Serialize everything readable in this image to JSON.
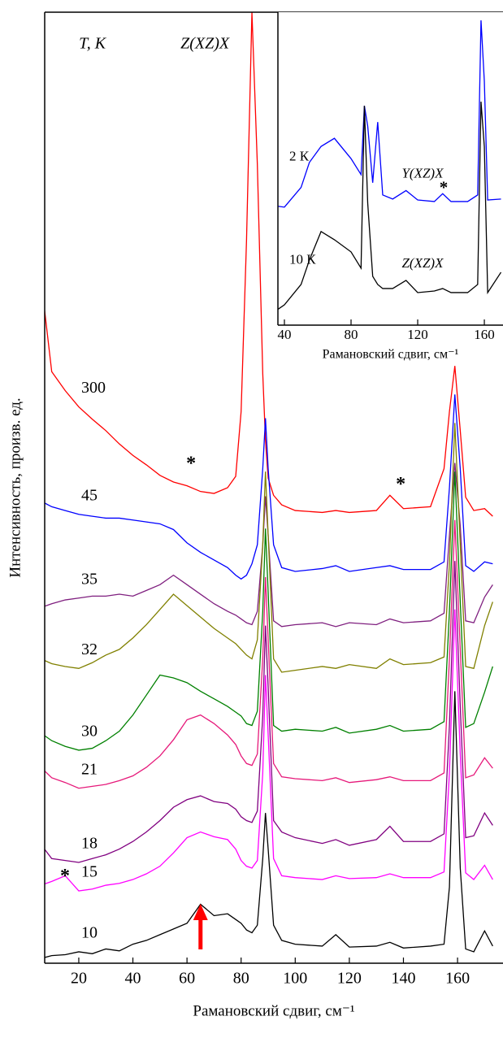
{
  "chart_data": [
    {
      "type": "line",
      "xlabel": "Рамановский сдвиг, см⁻¹",
      "ylabel": "Интенсивность, произв. ед.",
      "xlim": [
        7.4,
        176.8
      ],
      "xticks": [
        20,
        40,
        60,
        80,
        100,
        120,
        140,
        160
      ],
      "ylim": [
        0,
        100
      ],
      "x": [
        6,
        10,
        15,
        20,
        25,
        30,
        35,
        40,
        45,
        50,
        55,
        60,
        65,
        70,
        75,
        78,
        80,
        82,
        84,
        86,
        88,
        89,
        90,
        92,
        95,
        100,
        110,
        115,
        120,
        130,
        135,
        140,
        150,
        155,
        157,
        159,
        161,
        163,
        166,
        170,
        173
      ],
      "series": [
        {
          "name": "300",
          "color": "#ff0000",
          "values": [
            72,
            62.2,
            60.2,
            58.5,
            57.2,
            56.0,
            54.6,
            53.4,
            52.4,
            51.3,
            50.6,
            50.2,
            49.6,
            49.4,
            50.0,
            51.2,
            58,
            76,
            100,
            84,
            62,
            55,
            51,
            49.2,
            48.2,
            47.6,
            47.4,
            47.6,
            47.4,
            47.6,
            49.2,
            47.8,
            48.0,
            52,
            58,
            62.8,
            56,
            49,
            47.6,
            47.8,
            47.0
          ]
        },
        {
          "name": "45",
          "color": "#0000ff",
          "values": [
            48.6,
            48.0,
            47.6,
            47.2,
            47.0,
            46.8,
            46.8,
            46.6,
            46.4,
            46.2,
            45.6,
            44.2,
            43.2,
            42.4,
            41.6,
            40.8,
            40.4,
            40.8,
            42.0,
            44,
            52,
            57.3,
            52,
            44,
            41.6,
            41.2,
            41.5,
            41.8,
            41.2,
            41.6,
            41.8,
            41.4,
            41.4,
            42.2,
            50,
            59.8,
            52,
            41.8,
            41.2,
            42.2,
            42.0
          ]
        },
        {
          "name": "35",
          "color": "#7f1f7f",
          "values": [
            37.4,
            37.8,
            38.2,
            38.4,
            38.6,
            38.6,
            38.8,
            38.6,
            39.2,
            39.8,
            40.8,
            39.8,
            38.8,
            37.8,
            37.0,
            36.6,
            36.2,
            35.8,
            35.6,
            37,
            44,
            49.1,
            45,
            36,
            35.4,
            35.6,
            35.8,
            35.4,
            35.8,
            35.6,
            36.2,
            35.8,
            36.0,
            36.8,
            45,
            52.6,
            46,
            36.0,
            35.8,
            38.5,
            39.8
          ]
        },
        {
          "name": "32",
          "color": "#808000",
          "values": [
            32.0,
            31.5,
            31.2,
            31.0,
            31.6,
            32.4,
            33.0,
            34.2,
            35.6,
            37.2,
            38.8,
            37.6,
            36.4,
            35.2,
            34.2,
            33.6,
            33.0,
            32.4,
            32.0,
            34,
            44,
            51.7,
            45,
            32,
            30.6,
            30.8,
            31.2,
            31.0,
            31.4,
            31.0,
            32.0,
            31.4,
            31.6,
            32.2,
            42,
            56.8,
            44,
            31.2,
            31.0,
            35.5,
            38.0
          ]
        },
        {
          "name": "30",
          "color": "#008000",
          "values": [
            24.2,
            23.4,
            22.8,
            22.4,
            22.6,
            23.4,
            24.4,
            26.1,
            28.2,
            30.3,
            30.0,
            29.5,
            28.6,
            27.8,
            27.0,
            26.4,
            26.0,
            25.2,
            25.0,
            26.5,
            37,
            45.7,
            39,
            25,
            24.4,
            24.6,
            24.4,
            24.8,
            24.2,
            24.6,
            25.0,
            24.4,
            24.6,
            25.4,
            37,
            51.7,
            38,
            24.8,
            25.2,
            28.5,
            31.2
          ]
        },
        {
          "name": "21",
          "color": "#e6197a",
          "values": [
            20.6,
            19.5,
            19.0,
            18.4,
            18.6,
            18.8,
            19.2,
            19.7,
            20.6,
            21.8,
            23.5,
            25.6,
            26.1,
            25.2,
            24.0,
            23.0,
            21.8,
            21.0,
            20.8,
            22,
            32,
            40.6,
            34,
            21,
            19.6,
            19.4,
            19.2,
            19.5,
            19.0,
            19.3,
            19.6,
            19.2,
            19.2,
            20,
            32,
            46.6,
            33,
            19.5,
            19.8,
            21.6,
            20.5
          ]
        },
        {
          "name": "18",
          "color": "#800080",
          "values": [
            12.5,
            11.0,
            10.8,
            10.6,
            11.0,
            11.4,
            12.0,
            12.8,
            13.8,
            15.0,
            16.4,
            17.2,
            17.6,
            17.0,
            16.8,
            16.2,
            15.4,
            15.0,
            14.8,
            16.0,
            26,
            35.5,
            29,
            15,
            13.8,
            13.2,
            12.6,
            13.0,
            12.4,
            13.0,
            14.4,
            12.8,
            12.8,
            13.6,
            25,
            42.3,
            27,
            13.2,
            13.4,
            15.8,
            14.5
          ]
        },
        {
          "name": "15",
          "color": "#ff00ff",
          "values": [
            8.2,
            8.6,
            9.2,
            7.6,
            7.8,
            8.2,
            8.4,
            8.8,
            9.4,
            10.2,
            11.6,
            13.2,
            13.8,
            13.3,
            13.0,
            12.0,
            10.8,
            10.2,
            10.0,
            10.8,
            20,
            30.3,
            24,
            11,
            9.2,
            9.0,
            8.8,
            9.2,
            8.9,
            9.0,
            9.4,
            9.0,
            9.0,
            9.6,
            20,
            37.2,
            22,
            9.5,
            8.8,
            10.3,
            8.8
          ]
        },
        {
          "name": "10",
          "color": "#000000",
          "values": [
            0.5,
            0.8,
            0.9,
            1.2,
            1.0,
            1.5,
            1.3,
            2.0,
            2.4,
            3.0,
            3.6,
            4.2,
            6.2,
            5.0,
            5.2,
            4.6,
            4.2,
            3.5,
            3.2,
            4.0,
            11,
            15.8,
            12,
            4,
            2.4,
            2.0,
            1.8,
            3.0,
            1.7,
            1.8,
            2.2,
            1.6,
            1.8,
            2.0,
            8,
            28.6,
            10,
            1.5,
            1.2,
            3.4,
            1.8
          ]
        }
      ],
      "annotations": [
        {
          "text": "T, К",
          "x": 25,
          "y": 96.6
        },
        {
          "text": "Z(XZ)X",
          "x": 66.6,
          "y": 96.6
        },
        {
          "text": "*",
          "x": 61.5,
          "y": 52.4
        },
        {
          "text": "*",
          "x": 139,
          "y": 50.2
        },
        {
          "text": "*",
          "x": 14.9,
          "y": 9.0
        }
      ]
    },
    {
      "type": "line",
      "xlabel": "Рамановский сдвиг, см⁻¹",
      "xlim": [
        36.1,
        171.2
      ],
      "xticks": [
        40,
        80,
        120,
        160
      ],
      "ylim": [
        0,
        100
      ],
      "x": [
        36,
        40,
        50,
        55,
        62,
        70,
        80,
        86,
        88,
        90,
        93,
        96,
        99,
        105,
        113,
        120,
        130,
        135,
        140,
        150,
        156,
        158,
        160,
        162,
        170
      ],
      "series": [
        {
          "name": "2 К",
          "color": "#0000ff",
          "values": [
            38,
            37.7,
            44,
            52,
            57.1,
            59.7,
            53.2,
            48.1,
            70.1,
            63.6,
            45.5,
            64.9,
            41.6,
            40.3,
            43,
            40,
            39.5,
            42,
            39.5,
            39.5,
            41.6,
            97.4,
            77.9,
            40,
            40.3
          ]
        },
        {
          "name": "10 К",
          "color": "#000000",
          "values": [
            5,
            6.5,
            13,
            20.8,
            29.9,
            27.3,
            23.4,
            18.2,
            70.1,
            39,
            15.6,
            13,
            11.7,
            11.7,
            14.3,
            10.4,
            10.9,
            11.7,
            10.4,
            10.4,
            13,
            71.4,
            57,
            10.4,
            16.9
          ]
        }
      ],
      "annotations": [
        {
          "text": "Y(XZ)X",
          "x": 122.9,
          "y": 48.1
        },
        {
          "text": "Z(XZ)X",
          "x": 122.9,
          "y": 19.5
        },
        {
          "text": "*",
          "x": 135.6,
          "y": 43.4
        }
      ]
    }
  ]
}
